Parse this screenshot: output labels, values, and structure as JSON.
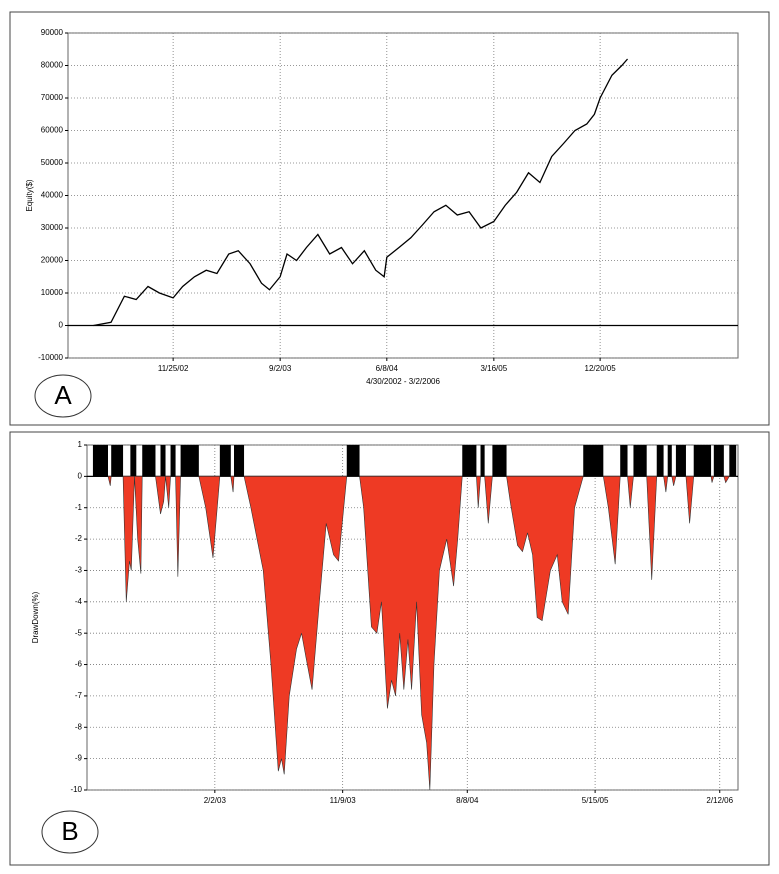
{
  "chart_data": [
    {
      "type": "line",
      "label": "A",
      "ylabel": "Equity($)",
      "xlabel": "4/30/2002 - 3/2/2006",
      "color": "#000000",
      "xlim": [
        "2/22/02",
        "12/17/06"
      ],
      "xticks": [
        "11/25/02",
        "9/2/03",
        "6/8/04",
        "3/16/05",
        "12/20/05"
      ],
      "ylim": [
        -10000,
        90000
      ],
      "yticks": [
        90000,
        80000,
        70000,
        60000,
        50000,
        40000,
        30000,
        20000,
        10000,
        0,
        -10000
      ],
      "grid": true,
      "x": [
        "4/30/02",
        "6/15/02",
        "7/20/02",
        "8/20/02",
        "9/20/02",
        "10/20/02",
        "11/25/02",
        "12/20/02",
        "1/20/03",
        "2/20/03",
        "3/20/03",
        "4/20/03",
        "5/15/03",
        "6/15/03",
        "7/15/03",
        "8/5/03",
        "9/2/03",
        "9/20/03",
        "10/15/03",
        "11/10/03",
        "12/10/03",
        "1/10/04",
        "2/10/04",
        "3/10/04",
        "4/10/04",
        "5/10/04",
        "6/1/04",
        "6/8/04",
        "7/10/04",
        "8/10/04",
        "9/10/04",
        "10/10/04",
        "11/10/04",
        "12/10/04",
        "1/10/05",
        "2/10/05",
        "3/16/05",
        "4/15/05",
        "5/15/05",
        "6/15/05",
        "7/15/05",
        "8/15/05",
        "9/15/05",
        "10/15/05",
        "11/15/05",
        "12/5/05",
        "12/20/05",
        "1/20/06",
        "2/15/06",
        "3/2/06"
      ],
      "values": [
        0,
        1000,
        9000,
        8000,
        12000,
        10000,
        8500,
        12000,
        15000,
        17000,
        16000,
        22000,
        23000,
        19000,
        13000,
        11000,
        15000,
        22000,
        20000,
        24000,
        28000,
        22000,
        24000,
        19000,
        23000,
        17000,
        15000,
        21000,
        24000,
        27000,
        31000,
        35000,
        37000,
        34000,
        35000,
        30000,
        32000,
        37000,
        41000,
        47000,
        44000,
        52000,
        56000,
        60000,
        62000,
        65000,
        70000,
        77000,
        80000,
        82000
      ]
    },
    {
      "type": "area",
      "label": "B",
      "ylabel": "DrawDown(%)",
      "color": "#ee3a24",
      "xlim": [
        "4/28/02",
        "3/24/06"
      ],
      "xticks": [
        "2/2/03",
        "11/9/03",
        "8/8/04",
        "5/15/05",
        "2/12/06"
      ],
      "ylim": [
        -10,
        1
      ],
      "yticks": [
        1,
        0,
        -1,
        -2,
        -3,
        -4,
        -5,
        -6,
        -7,
        -8,
        -9,
        -10
      ],
      "grid": true,
      "highs": [
        [
          "5/11/02",
          "6/13/02"
        ],
        [
          "6/20/02",
          "7/16/02"
        ],
        [
          "8/1/02",
          "8/14/02"
        ],
        [
          "8/27/02",
          "9/25/02"
        ],
        [
          "10/6/02",
          "10/17/02"
        ],
        [
          "10/28/02",
          "11/8/02"
        ],
        [
          "11/19/02",
          "12/29/02"
        ],
        [
          "2/13/03",
          "3/9/03"
        ],
        [
          "3/16/03",
          "4/7/03"
        ],
        [
          "11/18/03",
          "12/16/03"
        ],
        [
          "7/28/04",
          "8/28/04"
        ],
        [
          "9/6/04",
          "9/15/04"
        ],
        [
          "10/2/04",
          "11/2/04"
        ],
        [
          "4/19/05",
          "6/2/05"
        ],
        [
          "7/9/05",
          "7/25/05"
        ],
        [
          "8/7/05",
          "9/5/05"
        ],
        [
          "9/27/05",
          "10/12/05"
        ],
        [
          "10/21/05",
          "10/30/05"
        ],
        [
          "11/8/05",
          "11/30/05"
        ],
        [
          "12/17/05",
          "1/24/06"
        ],
        [
          "1/30/06",
          "2/21/06"
        ],
        [
          "3/5/06",
          "3/20/06"
        ]
      ],
      "x": [
        "6/13/02",
        "6/18/02",
        "6/20/02",
        "7/16/02",
        "7/23/02",
        "7/30/02",
        "8/3/02",
        "8/10/02",
        "8/17/02",
        "8/24/02",
        "8/27/02",
        "9/25/02",
        "10/6/02",
        "10/13/02",
        "10/17/02",
        "10/24/02",
        "10/28/02",
        "11/8/02",
        "11/13/02",
        "11/19/02",
        "12/29/02",
        "1/13/03",
        "1/29/03",
        "2/13/03",
        "3/9/03",
        "3/14/03",
        "3/16/03",
        "4/7/03",
        "4/22/03",
        "5/19/03",
        "6/5/03",
        "6/21/03",
        "6/28/03",
        "7/4/03",
        "7/15/03",
        "7/31/03",
        "8/11/03",
        "8/21/03",
        "9/3/03",
        "9/19/03",
        "10/4/03",
        "10/20/03",
        "10/31/03",
        "11/18/03",
        "12/16/03",
        "12/25/03",
        "1/11/04",
        "1/23/04",
        "2/2/04",
        "2/15/04",
        "2/24/04",
        "3/4/04",
        "3/13/04",
        "3/22/04",
        "3/31/04",
        "4/8/04",
        "4/19/04",
        "4/30/04",
        "5/11/04",
        "5/18/04",
        "5/27/04",
        "6/8/04",
        "6/24/04",
        "7/9/04",
        "7/18/04",
        "7/28/04",
        "8/28/04",
        "9/1/04",
        "9/6/04",
        "9/15/04",
        "9/23/04",
        "10/2/04",
        "11/2/04",
        "11/10/04",
        "11/26/04",
        "12/7/04",
        "12/18/04",
        "12/29/04",
        "1/8/05",
        "1/19/05",
        "2/6/05",
        "2/21/05",
        "3/4/05",
        "3/17/05",
        "3/31/05",
        "4/19/05",
        "6/2/05",
        "6/13/05",
        "6/28/05",
        "7/9/05",
        "7/25/05",
        "7/31/05",
        "8/7/05",
        "9/5/05",
        "9/16/05",
        "9/27/05",
        "10/12/05",
        "10/17/05",
        "10/21/05",
        "10/30/05",
        "11/3/05",
        "11/8/05",
        "11/30/05",
        "12/8/05",
        "12/17/05",
        "1/24/06",
        "1/26/06",
        "1/30/06",
        "2/21/06",
        "2/25/06",
        "3/5/06",
        "3/20/06"
      ],
      "values": [
        0,
        -0.3,
        0,
        0,
        -4.0,
        -2.7,
        -3.0,
        0,
        -2.0,
        -3.1,
        0,
        0,
        -1.2,
        -0.8,
        0,
        -1.0,
        0,
        0,
        -3.2,
        0,
        0,
        -1.0,
        -2.6,
        0,
        0,
        -0.5,
        0,
        0,
        -1.0,
        -3.0,
        -6.0,
        -9.4,
        -9.0,
        -9.5,
        -7.0,
        -5.5,
        -5.0,
        -5.8,
        -6.8,
        -4.0,
        -1.5,
        -2.5,
        -2.7,
        0,
        0,
        -1.0,
        -4.8,
        -5.0,
        -4.0,
        -7.4,
        -6.5,
        -7.0,
        -5.0,
        -6.8,
        -5.2,
        -6.8,
        -4.0,
        -7.6,
        -8.5,
        -10.0,
        -6.0,
        -3.0,
        -2.0,
        -3.5,
        -2.0,
        0,
        0,
        -1.0,
        0,
        0,
        -1.5,
        0,
        0,
        -0.8,
        -2.2,
        -2.4,
        -1.8,
        -2.5,
        -4.5,
        -4.6,
        -3.0,
        -2.5,
        -4.0,
        -4.4,
        -1.0,
        0,
        0,
        -1.0,
        -2.8,
        0,
        0,
        -1.0,
        0,
        0,
        -3.3,
        0,
        0,
        -0.5,
        0,
        0,
        -0.3,
        0,
        0,
        -1.5,
        0,
        0,
        -0.2,
        0,
        0,
        -0.2,
        0,
        0
      ]
    }
  ]
}
